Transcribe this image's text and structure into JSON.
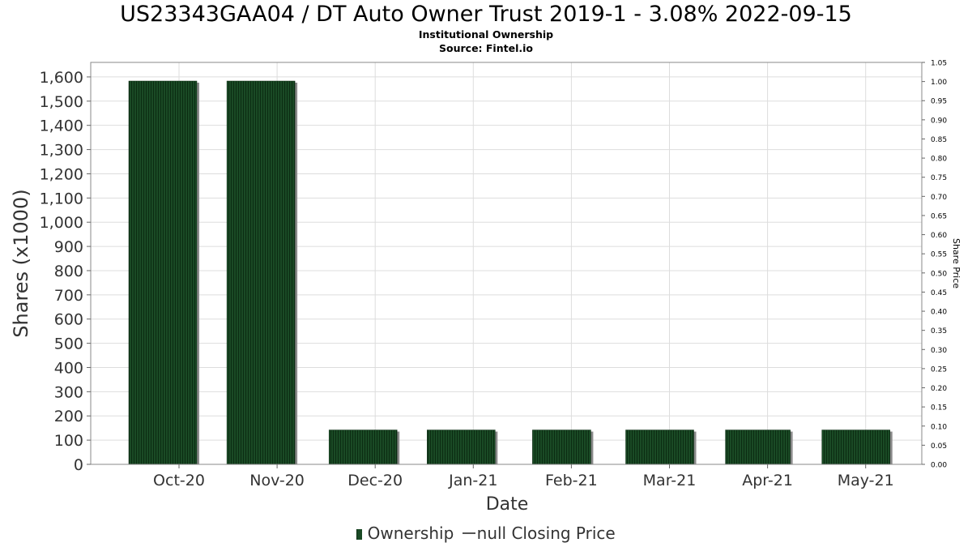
{
  "header": {
    "title": "US23343GAA04 / DT Auto Owner Trust 2019-1 - 3.08% 2022-09-15",
    "subtitle": "Institutional Ownership",
    "source": "Source: Fintel.io"
  },
  "legend": {
    "ownership_label": "Ownership",
    "price_label": "null Closing Price"
  },
  "colors": {
    "bar": "#1a4a25",
    "bar_stripe": "#0b2c12",
    "bar_shadow": "#8a8a8a",
    "grid": "#dddddd"
  },
  "chart_data": {
    "type": "bar",
    "categories": [
      "Oct-20",
      "Nov-20",
      "Dec-20",
      "Jan-21",
      "Feb-21",
      "Mar-21",
      "Apr-21",
      "May-21"
    ],
    "series": [
      {
        "name": "Ownership",
        "values": [
          1583,
          1583,
          142,
          142,
          142,
          142,
          142,
          142
        ]
      }
    ],
    "xlabel": "Date",
    "ylabel": "Shares (x1000)",
    "ylim": [
      0,
      1660
    ],
    "yticks": [
      0,
      100,
      200,
      300,
      400,
      500,
      600,
      700,
      800,
      900,
      1000,
      1100,
      1200,
      1300,
      1400,
      1500,
      1600
    ],
    "ytick_labels": [
      "0",
      "100",
      "200",
      "300",
      "400",
      "500",
      "600",
      "700",
      "800",
      "900",
      "1,000",
      "1,100",
      "1,200",
      "1,300",
      "1,400",
      "1,500",
      "1,600"
    ],
    "y2label": "Share Price",
    "y2lim": [
      0,
      1.05
    ],
    "y2ticks": [
      0.0,
      0.05,
      0.1,
      0.15,
      0.2,
      0.25,
      0.3,
      0.35,
      0.4,
      0.45,
      0.5,
      0.55,
      0.6,
      0.65,
      0.7,
      0.75,
      0.8,
      0.85,
      0.9,
      0.95,
      1.0,
      1.05
    ],
    "y2tick_labels": [
      "0.00",
      "0.05",
      "0.10",
      "0.15",
      "0.20",
      "0.25",
      "0.30",
      "0.35",
      "0.40",
      "0.45",
      "0.50",
      "0.55",
      "0.60",
      "0.65",
      "0.70",
      "0.75",
      "0.80",
      "0.85",
      "0.90",
      "0.95",
      "1.00",
      "1.05"
    ],
    "grid": true,
    "legend_position": "bottom"
  }
}
